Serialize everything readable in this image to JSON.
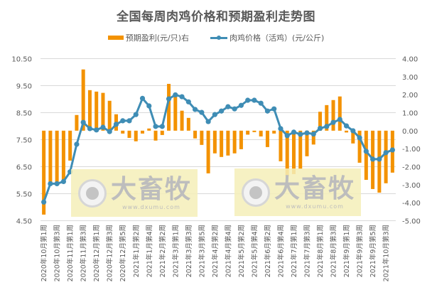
{
  "chart_data": {
    "type": "bar+line",
    "title": "全国每周肉鸡价格和预期盈利走势图",
    "legend": {
      "position": "top"
    },
    "legend_entries": [
      "预期盈利(元/只)右",
      "肉鸡价格（活鸡）(元/公斤)"
    ],
    "xlabel": "",
    "ylabel_left": "肉鸡价格（活鸡）(元/公斤)",
    "ylabel_right": "预期盈利(元/只)",
    "ylim_left": [
      4.5,
      10.5
    ],
    "yticks_left": [
      "10.50",
      "9.50",
      "8.50",
      "7.50",
      "6.50",
      "5.50",
      "4.50"
    ],
    "ylim_right": [
      -5,
      4
    ],
    "yticks_right": [
      "4.00",
      "3.00",
      "2.00",
      "1.00",
      "0.00",
      "-1.00",
      "-2.00",
      "-3.00",
      "-4.00",
      "-5.00"
    ],
    "grid": true,
    "x_tick_labels": [
      "2020年10月第1周",
      "2020年10月第3周",
      "2020年11月第1周",
      "2020年11月第3周",
      "2020年12月第1周",
      "2020年12月第3周",
      "2020年12月第5周",
      "2021年1月第2周",
      "2021年1月第4周",
      "2021年2月第2周",
      "2021年3月第1周",
      "2021年3月第3周",
      "2021年3月第5周",
      "2021年4月第2周",
      "2021年4月第4周",
      "2021年5月第2周",
      "2021年5月第4周",
      "2021年6月第2周",
      "2021年6月第4周",
      "2021年7月第1周",
      "2021年7月第3周",
      "2021年8月第1周",
      "2021年8月第3周",
      "2021年9月第1周",
      "2021年9月第3周",
      "2021年9月第5周",
      "2021年10月第3周"
    ],
    "n_points": 54,
    "series": [
      {
        "name": "预期盈利(元/只)右",
        "type": "bar",
        "axis": "right",
        "color": "#F39200",
        "values": [
          -4.66,
          -2.92,
          -2.9,
          -2.9,
          -1.66,
          0.87,
          3.4,
          2.25,
          2.17,
          2.1,
          1.66,
          0.91,
          -0.16,
          -0.4,
          -0.59,
          -0.16,
          0.12,
          -0.55,
          -0.24,
          2.6,
          1.9,
          1.11,
          0.71,
          -0.43,
          -0.79,
          -2.37,
          -1.26,
          -1.46,
          -1.38,
          -1.26,
          -1.03,
          -0.22,
          -0.08,
          -0.32,
          -0.91,
          -0.16,
          -1.7,
          -2.53,
          -2.41,
          -2.13,
          -1.42,
          -0.77,
          1.05,
          1.42,
          1.7,
          1.9,
          -0.1,
          -0.71,
          -1.78,
          -2.73,
          -3.24,
          -3.44,
          -2.92,
          -2.33
        ]
      },
      {
        "name": "肉鸡价格（活鸡）(元/公斤)",
        "type": "line",
        "axis": "left",
        "color": "#3F8DB5",
        "values": [
          5.19,
          5.87,
          5.87,
          5.95,
          6.31,
          7.33,
          8.14,
          7.91,
          7.86,
          7.96,
          7.8,
          8.07,
          8.2,
          8.2,
          8.43,
          9.03,
          8.75,
          7.99,
          7.99,
          9.01,
          9.16,
          9.09,
          8.9,
          8.62,
          8.51,
          8.17,
          8.43,
          8.56,
          8.72,
          8.64,
          8.77,
          8.96,
          8.96,
          8.85,
          8.56,
          8.64,
          7.91,
          7.65,
          7.78,
          7.7,
          7.75,
          7.71,
          7.92,
          7.99,
          8.14,
          8.25,
          8.01,
          7.83,
          7.57,
          7.07,
          6.78,
          6.78,
          7.02,
          7.12
        ]
      }
    ]
  },
  "legend": {
    "bar_label": "预期盈利(元/只)右",
    "line_label": "肉鸡价格（活鸡）(元/公斤)"
  },
  "watermark": {
    "name": "大畜牧",
    "url": "www.dxumu.com"
  }
}
